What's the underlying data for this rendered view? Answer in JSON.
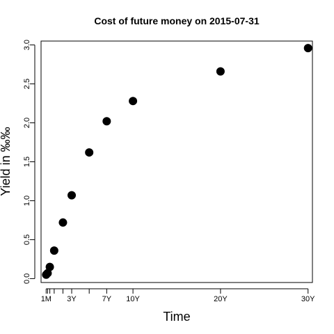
{
  "chart_data": {
    "type": "scatter",
    "title": "Cost of future money on 2015-07-31",
    "xlabel": "Time",
    "ylabel": "Yield in ‰‰",
    "xlim": [
      -0.5,
      30.5
    ],
    "ylim": [
      -0.05,
      3.05
    ],
    "grid": false,
    "x_ticks": [
      {
        "value": 0.0833,
        "label": "1M"
      },
      {
        "value": 0.25,
        "label": ""
      },
      {
        "value": 0.5,
        "label": ""
      },
      {
        "value": 1,
        "label": ""
      },
      {
        "value": 2,
        "label": ""
      },
      {
        "value": 3,
        "label": "3Y"
      },
      {
        "value": 5,
        "label": ""
      },
      {
        "value": 7,
        "label": "7Y"
      },
      {
        "value": 10,
        "label": "10Y"
      },
      {
        "value": 20,
        "label": "20Y"
      },
      {
        "value": 30,
        "label": "30Y"
      }
    ],
    "y_ticks": [
      {
        "value": 0.0,
        "label": "0.0"
      },
      {
        "value": 0.5,
        "label": "0.5"
      },
      {
        "value": 1.0,
        "label": "1.0"
      },
      {
        "value": 1.5,
        "label": "1.5"
      },
      {
        "value": 2.0,
        "label": "2.0"
      },
      {
        "value": 2.5,
        "label": "2.5"
      },
      {
        "value": 3.0,
        "label": "3.0"
      }
    ],
    "series": [
      {
        "x": [
          0.0833,
          0.25,
          0.5,
          1,
          2,
          3,
          5,
          7,
          10,
          20,
          30
        ],
        "y": [
          0.05,
          0.07,
          0.15,
          0.36,
          0.72,
          1.07,
          1.62,
          2.02,
          2.28,
          2.66,
          2.96
        ],
        "color": "#000000"
      }
    ]
  }
}
